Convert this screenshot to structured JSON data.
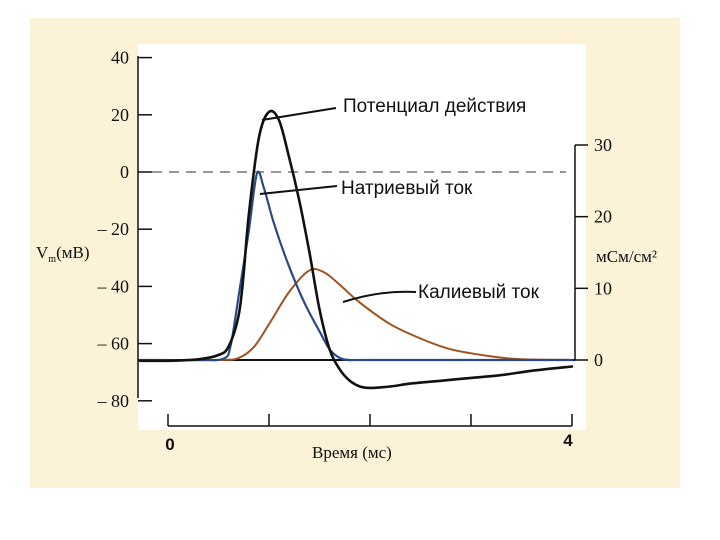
{
  "colors": {
    "page_background": "#ffffff",
    "frame_background": "#fbf2d8",
    "plot_background": "#ffffff",
    "action_potential": "#111111",
    "sodium_current": "#2a4a86",
    "potassium_current": "#a0521e",
    "dashed_zero": "#777777"
  },
  "chart_data": {
    "type": "line",
    "xlabel": "Время (мс)",
    "x_ticks": [
      "0",
      "4"
    ],
    "xlim": [
      0,
      4
    ],
    "y_left": {
      "label_main": "V",
      "label_sub": "m",
      "label_unit": "(мВ)",
      "ylim": [
        -80,
        40
      ],
      "ticks": [
        "40",
        "20",
        "0",
        "– 20",
        "– 40",
        "– 60",
        "– 80"
      ]
    },
    "y_right": {
      "label": "мСм/см²",
      "ylim": [
        0,
        30
      ],
      "ticks": [
        "30",
        "20",
        "10",
        "0"
      ]
    },
    "series": [
      {
        "name": "Потенциал действия",
        "axis": "left",
        "x": [
          -0.3,
          0.0,
          0.3,
          0.5,
          0.6,
          0.7,
          0.75,
          0.8,
          0.9,
          1.0,
          1.1,
          1.2,
          1.3,
          1.4,
          1.5,
          1.6,
          1.7,
          1.8,
          1.9,
          2.0,
          2.2,
          2.4,
          2.7,
          3.0,
          3.3,
          3.6,
          4.0
        ],
        "y": [
          -66,
          -66,
          -65.5,
          -64,
          -61,
          -50,
          -35,
          -15,
          12,
          21,
          18,
          5,
          -10,
          -28,
          -48,
          -62,
          -69,
          -73,
          -75,
          -75.5,
          -75,
          -74,
          -73,
          -72,
          -71,
          -69.5,
          -68
        ]
      },
      {
        "name": "Натриевый ток",
        "axis": "right",
        "x": [
          -0.3,
          0.3,
          0.55,
          0.62,
          0.7,
          0.8,
          0.88,
          0.95,
          1.05,
          1.2,
          1.35,
          1.5,
          1.6,
          1.7,
          1.8,
          2.0,
          4.0
        ],
        "y": [
          0,
          0,
          0.2,
          2,
          9,
          18,
          26,
          24,
          19,
          13,
          8,
          4,
          1.5,
          0.3,
          0,
          0,
          0
        ]
      },
      {
        "name": "Калиевый ток",
        "axis": "right",
        "x": [
          -0.3,
          0.5,
          0.7,
          0.85,
          1.0,
          1.2,
          1.4,
          1.55,
          1.7,
          1.9,
          2.2,
          2.5,
          2.8,
          3.2,
          3.5,
          4.0
        ],
        "y": [
          0,
          0,
          0.3,
          1.8,
          5,
          9.5,
          12.5,
          12.2,
          10.5,
          8,
          5,
          3,
          1.5,
          0.5,
          0.1,
          0
        ]
      }
    ],
    "reference_lines": [
      {
        "kind": "dashed",
        "axis": "left",
        "y": 0
      },
      {
        "kind": "solid",
        "axis": "right",
        "y": 0
      }
    ],
    "annotations": [
      {
        "text": "Потенциал действия",
        "series": "Потенциал действия"
      },
      {
        "text": "Натриевый ток",
        "series": "Натриевый ток"
      },
      {
        "text": "Калиевый ток",
        "series": "Калиевый ток"
      }
    ],
    "grid": false,
    "legend": "none"
  }
}
